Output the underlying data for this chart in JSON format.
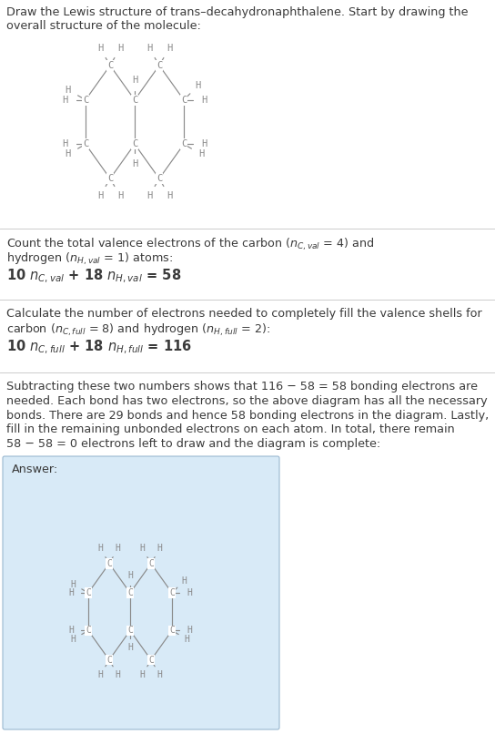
{
  "title_line1": "Draw the Lewis structure of trans–decahydronaphthalene. Start by drawing the",
  "title_line2": "overall structure of the molecule:",
  "sec1_l1": "Count the total valence electrons of the carbon ($n_{C,val}$ = 4) and",
  "sec1_l2": "hydrogen ($n_{H,val}$ = 1) atoms:",
  "sec1_l3": "10 $n_{C,val}$ + 18 $n_{H,val}$ = 58",
  "sec2_l1": "Calculate the number of electrons needed to completely fill the valence shells for",
  "sec2_l2": "carbon ($n_{C,full}$ = 8) and hydrogen ($n_{H,full}$ = 2):",
  "sec2_l3": "10 $n_{C,full}$ + 18 $n_{H,full}$ = 116",
  "sec3_lines": [
    "Subtracting these two numbers shows that 116 − 58 = 58 bonding electrons are",
    "needed. Each bond has two electrons, so the above diagram has all the necessary",
    "bonds. There are 29 bonds and hence 58 bonding electrons in the diagram. Lastly,",
    "fill in the remaining unbonded electrons on each atom. In total, there remain",
    "58 − 58 = 0 electrons left to draw and the diagram is complete:"
  ],
  "answer_label": "Answer:",
  "bg_color": "#ffffff",
  "text_color": "#3a3a3a",
  "mol_color": "#8a8a8a",
  "ans_bg": "#d8eaf7",
  "ans_border": "#9ab8d0",
  "hr_color": "#cccccc",
  "fig_w": 5.44,
  "fig_h": 8.06,
  "dpi": 100
}
